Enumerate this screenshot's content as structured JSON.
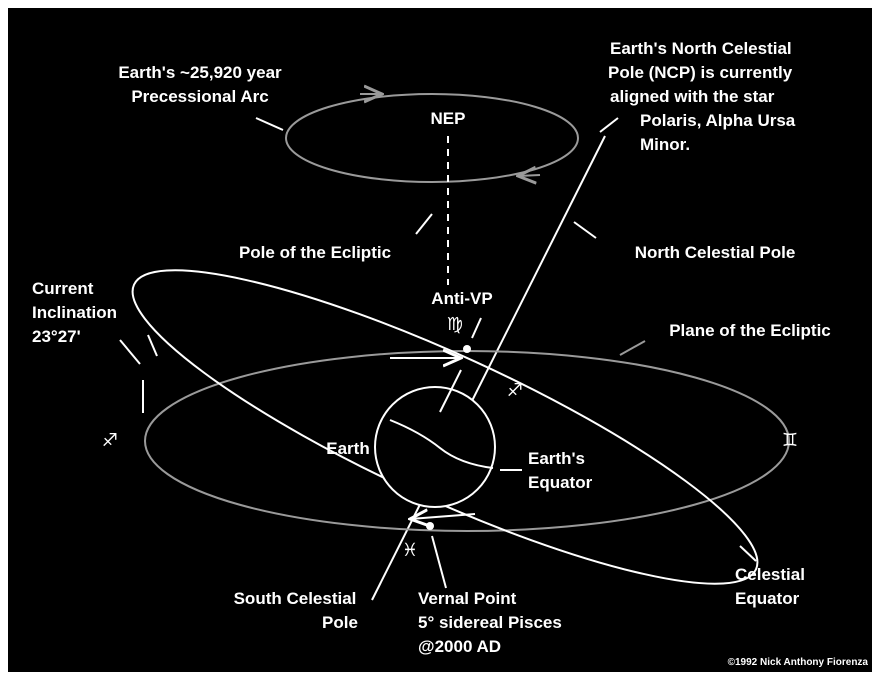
{
  "labels": {
    "precessional_arc": [
      "Earth's ~25,920 year",
      "Precessional Arc"
    ],
    "nep": "NEP",
    "ncp_note": [
      "Earth's North Celestial",
      "Pole (NCP) is currently",
      "aligned with the star",
      "Polaris, Alpha Ursa",
      "Minor."
    ],
    "pole_of_ecliptic": "Pole of the Ecliptic",
    "north_celestial_pole": "North Celestial Pole",
    "current_inclination": [
      "Current",
      "Inclination",
      "23°27'"
    ],
    "anti_vp": "Anti-VP",
    "plane_of_ecliptic": "Plane of the Ecliptic",
    "earth": "Earth",
    "earths_equator": [
      "Earth's",
      "Equator"
    ],
    "south_celestial_pole": [
      "South Celestial",
      "Pole"
    ],
    "vernal_point": [
      "Vernal Point",
      "5° sidereal Pisces",
      "@2000 AD"
    ],
    "celestial_equator": [
      "Celestial",
      "Equator"
    ],
    "copyright": "©1992 Nick Anthony Fiorenza"
  },
  "symbols": {
    "virgo": "♍",
    "sagittarius_right": "♐",
    "sagittarius_left": "♐",
    "gemini": "♊",
    "pisces": "♓"
  }
}
